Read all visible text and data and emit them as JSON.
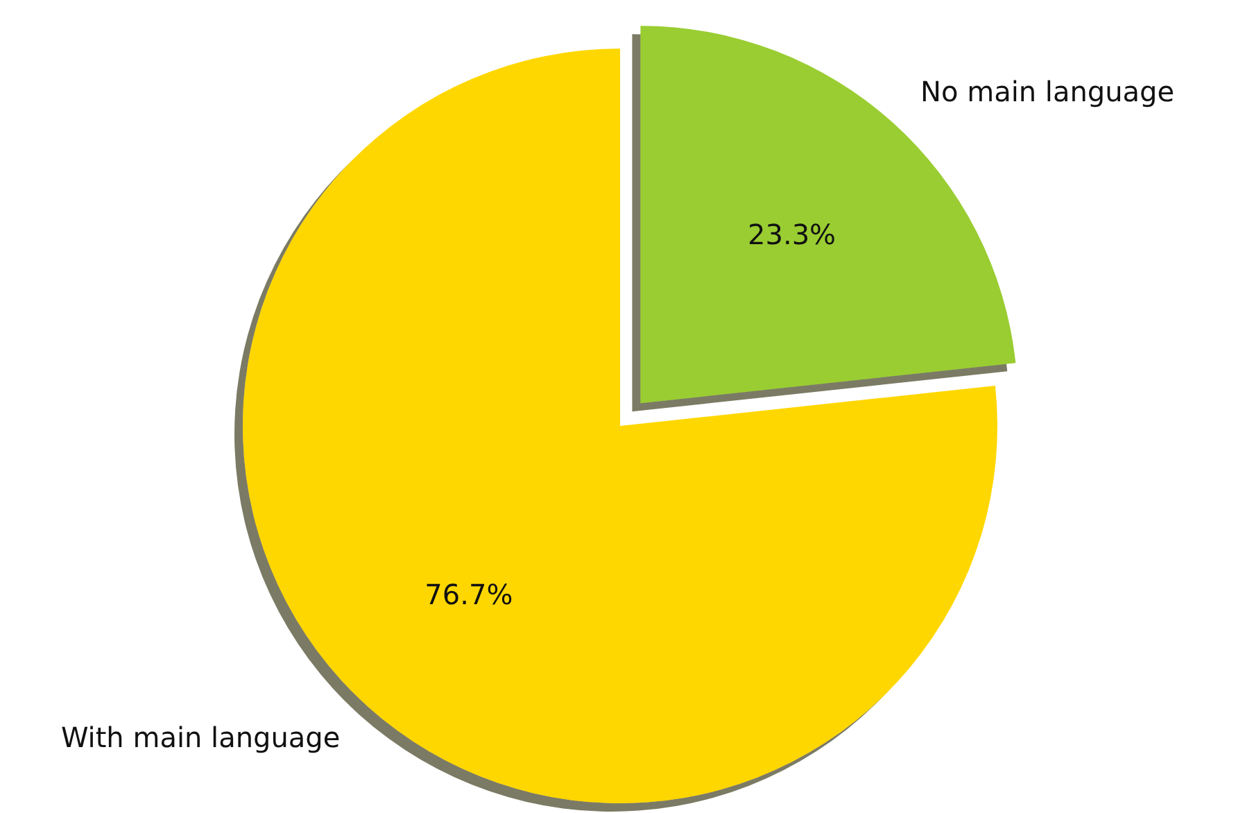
{
  "chart_data": {
    "type": "pie",
    "categories": [
      "With main language",
      "No main language"
    ],
    "values": [
      76.7,
      23.3
    ],
    "value_labels": [
      "76.7%",
      "23.3%"
    ],
    "colors": [
      "#ffd700",
      "#9acd32"
    ],
    "legend": false
  }
}
